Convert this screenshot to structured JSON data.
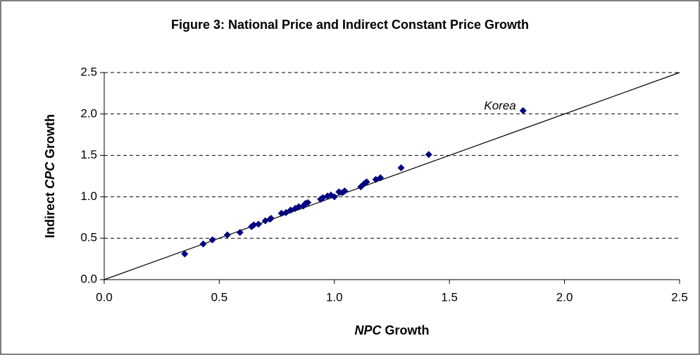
{
  "chart_data": {
    "type": "scatter",
    "title": "Figure 3: National Price and Indirect Constant Price Growth",
    "xlabel": [
      {
        "text": "NPC",
        "italic": true
      },
      {
        "text": " Growth"
      }
    ],
    "ylabel": [
      {
        "text": "Indirect "
      },
      {
        "text": "CPC",
        "italic": true
      },
      {
        "text": " Growth"
      }
    ],
    "annotation": "Korea",
    "color": "#000080",
    "x": [
      0.35,
      0.43,
      0.47,
      0.535,
      0.59,
      0.64,
      0.65,
      0.67,
      0.7,
      0.72,
      0.725,
      0.77,
      0.79,
      0.81,
      0.83,
      0.845,
      0.865,
      0.875,
      0.885,
      0.94,
      0.95,
      0.97,
      0.985,
      1.0,
      1.02,
      1.035,
      1.045,
      1.115,
      1.13,
      1.14,
      1.18,
      1.2,
      1.29,
      1.41,
      1.82
    ],
    "y": [
      0.31,
      0.43,
      0.48,
      0.54,
      0.57,
      0.64,
      0.66,
      0.67,
      0.71,
      0.73,
      0.74,
      0.8,
      0.81,
      0.84,
      0.86,
      0.88,
      0.89,
      0.92,
      0.93,
      0.97,
      0.99,
      1.01,
      1.02,
      1.0,
      1.06,
      1.05,
      1.07,
      1.12,
      1.16,
      1.18,
      1.21,
      1.23,
      1.35,
      1.51,
      2.04
    ],
    "reference_line": {
      "x": [
        0,
        2.5
      ],
      "y": [
        0,
        2.5
      ]
    },
    "xlim": [
      0,
      2.5
    ],
    "ylim": [
      0,
      2.5
    ],
    "xticks": [
      {
        "value": 0,
        "label": "0.0"
      },
      0.5,
      {
        "value": 1,
        "label": "1.0"
      },
      1.5,
      {
        "value": 2,
        "label": "2.0"
      },
      2.5
    ],
    "yticks": [
      {
        "value": 0,
        "label": "0.0"
      },
      0.5,
      {
        "value": 1,
        "label": "1.0"
      },
      1.5,
      {
        "value": 2,
        "label": "2.0"
      },
      2.5
    ],
    "grid": true
  }
}
